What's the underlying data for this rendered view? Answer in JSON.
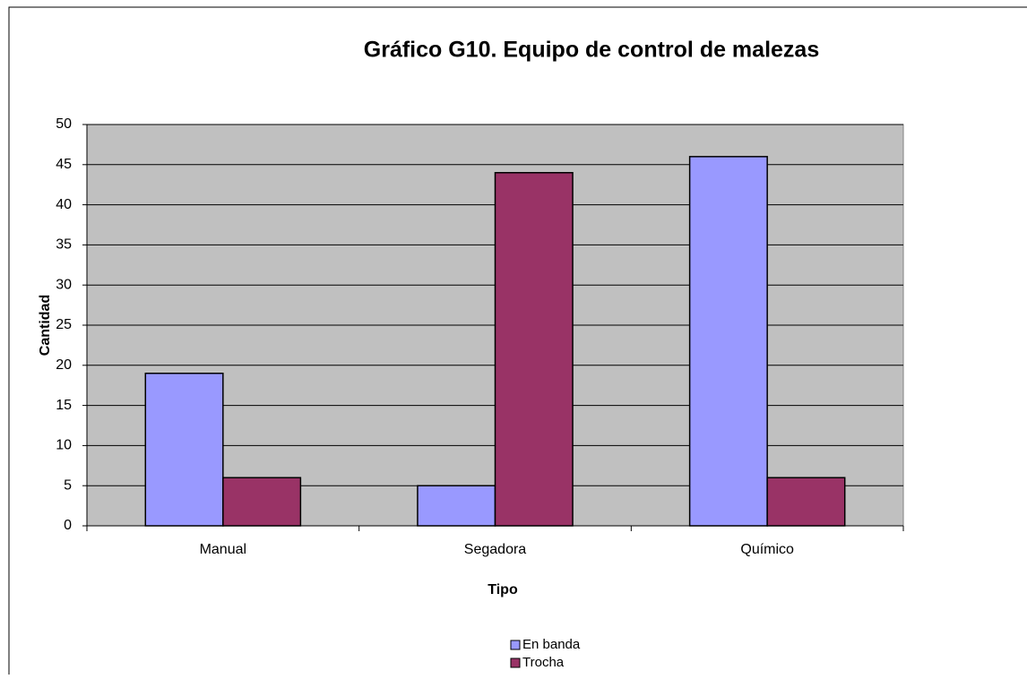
{
  "chart_data": {
    "type": "bar",
    "title": "Gráfico G10. Equipo de control de malezas",
    "x_label": "Tipo",
    "y_label": "Cantidad",
    "categories": [
      "Manual",
      "Segadora",
      "Químico"
    ],
    "series": [
      {
        "name": "En banda",
        "color": "#9999ff",
        "values": [
          19,
          5,
          46
        ]
      },
      {
        "name": "Trocha",
        "color": "#993366",
        "values": [
          6,
          44,
          6
        ]
      }
    ],
    "ylim": [
      0,
      50
    ],
    "yticks": [
      0,
      5,
      10,
      15,
      20,
      25,
      30,
      35,
      40,
      45,
      50
    ],
    "grid": true,
    "legend": "bottom"
  }
}
